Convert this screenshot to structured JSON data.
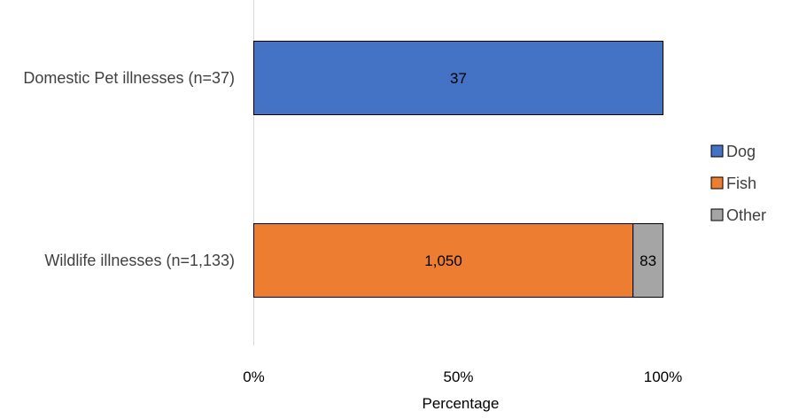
{
  "chart_data": {
    "type": "bar",
    "orientation": "horizontal",
    "stacked": "percent",
    "categories": [
      "Domestic Pet illnesses (n=37)",
      "Wildlife illnesses (n=1,133)"
    ],
    "series": [
      {
        "name": "Dog",
        "color": "#4472C4",
        "values": [
          37,
          0
        ]
      },
      {
        "name": "Fish",
        "color": "#ED7D31",
        "values": [
          0,
          1050
        ]
      },
      {
        "name": "Other",
        "color": "#A5A5A5",
        "values": [
          0,
          83
        ]
      }
    ],
    "data_labels": [
      {
        "category": "Domestic Pet illnesses (n=37)",
        "series": "Dog",
        "text": "37"
      },
      {
        "category": "Wildlife illnesses (n=1,133)",
        "series": "Fish",
        "text": "1,050"
      },
      {
        "category": "Wildlife illnesses (n=1,133)",
        "series": "Other",
        "text": "83"
      }
    ],
    "xlabel": "Percentage",
    "ylabel": "",
    "xlim": [
      0,
      100
    ],
    "x_ticks": [
      "0%",
      "50%",
      "100%"
    ],
    "grid": false,
    "legend": {
      "placement": "right",
      "entries": [
        "Dog",
        "Fish",
        "Other"
      ]
    }
  }
}
